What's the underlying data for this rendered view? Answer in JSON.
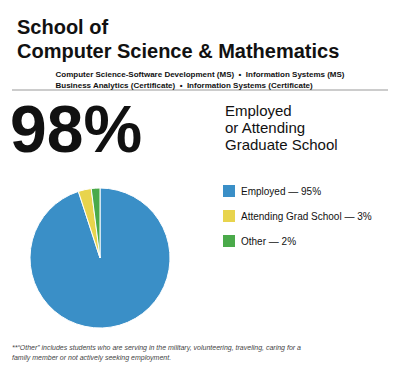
{
  "chart_data": {
    "type": "pie",
    "title": "School of\nComputer Science & Mathematics",
    "subtitle": "Computer Science-Software Development (MS)  •  Information Systems (MS)\nBusiness Analytics (Certificate)  •  Information Systems (Certificate)",
    "annotations": [
      "98%",
      "Employed\nor Attending\nGraduate School",
      "**“Other” includes students who are serving in the military, volunteering, traveling, caring for a\nfamily member or not actively seeking employment."
    ],
    "categories": [
      "Employed — 95%",
      "Attending Grad School — 3%",
      "Other — 2%"
    ],
    "values": [
      95,
      3,
      2
    ],
    "colors": [
      "#3a8fc7",
      "#e8d44d",
      "#4aaa4a"
    ],
    "legend": "right"
  }
}
